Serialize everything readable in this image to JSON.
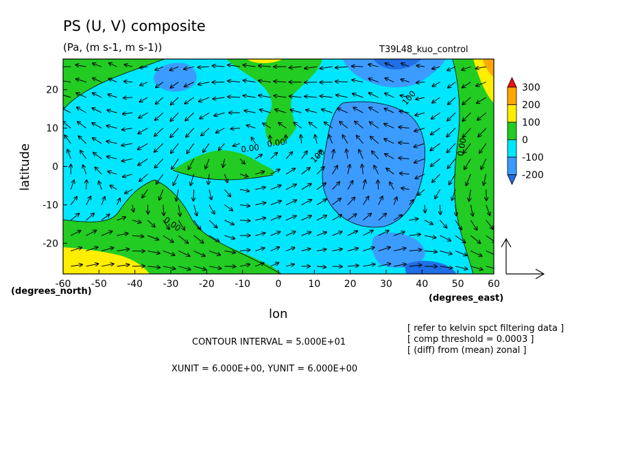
{
  "chart_data": {
    "type": "heatmap",
    "title": "PS (U, V) composite",
    "subtitle": "(Pa, (m s-1, m s-1))",
    "run_label": "T39L48_kuo_control",
    "xlabel": "lon",
    "ylabel": "latitude",
    "x_unit_label": "(degrees_east)",
    "y_unit_label": "(degrees_north)",
    "xlim": [
      -60,
      60
    ],
    "ylim": [
      -28,
      28
    ],
    "x_ticks": [
      -60,
      -50,
      -40,
      -30,
      -20,
      -10,
      0,
      10,
      20,
      30,
      40,
      50,
      60
    ],
    "y_ticks": [
      -20,
      -10,
      0,
      10,
      20
    ],
    "colorbar": {
      "levels": [
        -200,
        -100,
        0,
        100,
        200,
        300
      ],
      "colors": [
        "#1f6fe6",
        "#3c9bff",
        "#00e6ff",
        "#22cc22",
        "#ffee00",
        "#ffa800",
        "#ee1111"
      ]
    },
    "contour_labels": [
      "0.00",
      "0.00",
      "0.00",
      "0.00",
      "100",
      "100"
    ],
    "notes": {
      "contour_interval": "CONTOUR INTERVAL = 5.000E+01",
      "vector_units": "XUNIT = 6.000E+00, YUNIT = 6.000E+00",
      "filter_note": "[ refer to kelvin spct filtering data ]",
      "threshold_note": "[ comp threshold = 0.0003 ]",
      "diff_note": "[ (diff) from (mean) zonal ]"
    }
  }
}
